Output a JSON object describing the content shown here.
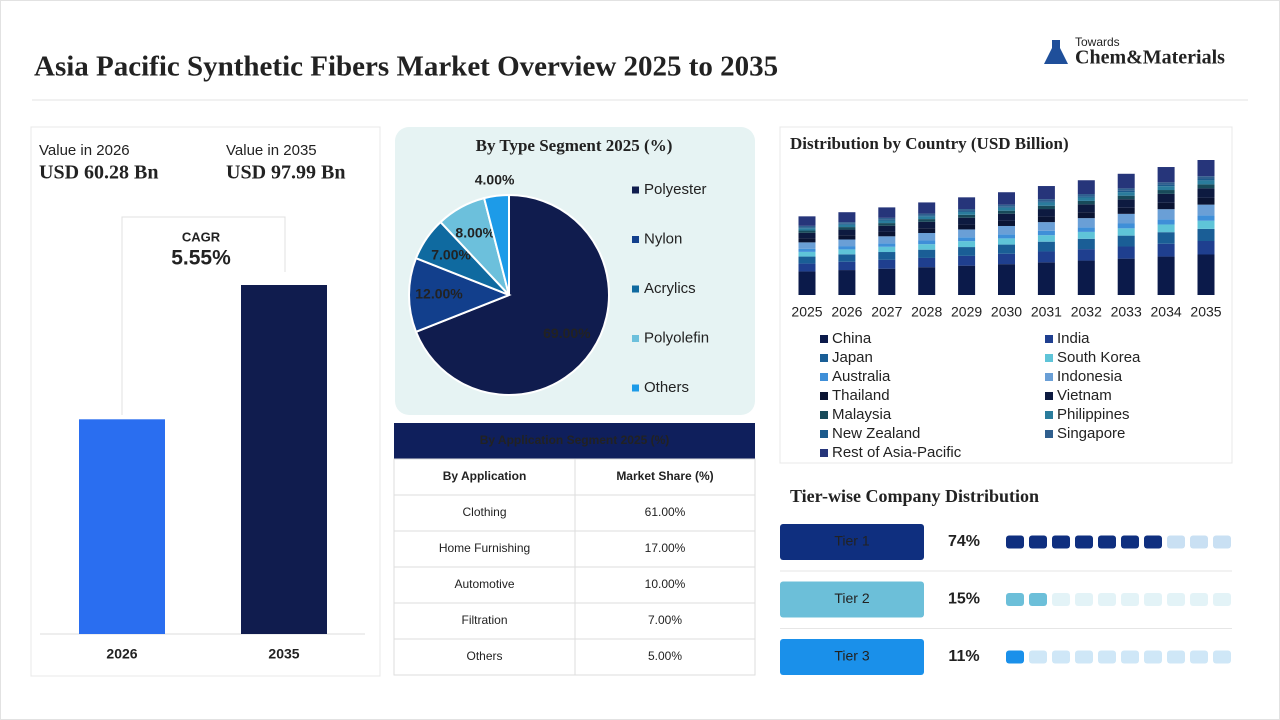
{
  "title": "Asia Pacific Synthetic Fibers Market Overview 2025 to 2035",
  "logo": {
    "top": "Towards",
    "main": "Chem&Materials"
  },
  "chart_data": [
    {
      "type": "bar",
      "categories": [
        "2026",
        "2035"
      ],
      "captions": [
        "Value in 2026",
        "Value in 2035"
      ],
      "values": [
        60.28,
        97.99
      ],
      "value_labels": [
        "USD 60.28 Bn",
        "USD 97.99 Bn"
      ],
      "colors": [
        "#2a6ef0",
        "#101c4e"
      ],
      "cagr": {
        "label": "CAGR",
        "value": "5.55%"
      }
    },
    {
      "type": "pie",
      "title": "By Type Segment 2025 (%)",
      "categories": [
        "Polyester",
        "Nylon",
        "Acrylics",
        "Polyolefin",
        "Others"
      ],
      "values": [
        69,
        12,
        7,
        8,
        4
      ],
      "value_labels": [
        "69.00%",
        "12.00%",
        "7.00%",
        "8.00%",
        "4.00%"
      ],
      "colors": [
        "#101c4e",
        "#123f8c",
        "#0f6aa0",
        "#6cc0dc",
        "#1d9be8"
      ]
    },
    {
      "type": "stacked_bar",
      "title": "Distribution by Country (USD Billion)",
      "categories": [
        "2025",
        "2026",
        "2027",
        "2028",
        "2029",
        "2030",
        "2031",
        "2032",
        "2033",
        "2034",
        "2035"
      ],
      "series": [
        {
          "name": "China",
          "color": "#0b1a4a",
          "values": [
            17.1,
            18.1,
            19.1,
            20.2,
            21.3,
            22.4,
            23.7,
            25.0,
            26.4,
            27.9,
            29.4
          ]
        },
        {
          "name": "India",
          "color": "#1f3f8f",
          "values": [
            5.7,
            6.0,
            6.4,
            6.7,
            7.1,
            7.5,
            7.9,
            8.3,
            8.8,
            9.3,
            9.8
          ]
        },
        {
          "name": "Japan",
          "color": "#1a5e96",
          "values": [
            5.1,
            5.4,
            5.7,
            6.0,
            6.4,
            6.7,
            7.1,
            7.5,
            7.9,
            8.4,
            8.8
          ]
        },
        {
          "name": "South Korea",
          "color": "#5fc4d8",
          "values": [
            3.4,
            3.6,
            3.8,
            4.0,
            4.3,
            4.5,
            4.7,
            5.0,
            5.3,
            5.6,
            5.9
          ]
        },
        {
          "name": "Australia",
          "color": "#3f8fd8",
          "values": [
            2.3,
            2.4,
            2.5,
            2.7,
            2.8,
            3.0,
            3.2,
            3.3,
            3.5,
            3.7,
            3.9
          ]
        },
        {
          "name": "Indonesia",
          "color": "#6a9fd6",
          "values": [
            4.6,
            4.8,
            5.1,
            5.4,
            5.7,
            6.0,
            6.3,
            6.7,
            7.0,
            7.4,
            7.8
          ]
        },
        {
          "name": "Thailand",
          "color": "#0a1433",
          "values": [
            2.9,
            3.0,
            3.2,
            3.4,
            3.5,
            3.7,
            4.0,
            4.2,
            4.4,
            4.6,
            4.9
          ]
        },
        {
          "name": "Vietnam",
          "color": "#0d1a40",
          "values": [
            4.0,
            4.2,
            4.5,
            4.7,
            5.0,
            5.2,
            5.5,
            5.8,
            6.2,
            6.5,
            6.9
          ]
        },
        {
          "name": "Malaysia",
          "color": "#184a5a",
          "values": [
            1.7,
            1.8,
            1.9,
            2.0,
            2.1,
            2.2,
            2.4,
            2.5,
            2.6,
            2.8,
            2.9
          ]
        },
        {
          "name": "Philippines",
          "color": "#2a7c9c",
          "values": [
            1.7,
            1.8,
            1.9,
            2.0,
            2.1,
            2.2,
            2.4,
            2.5,
            2.6,
            2.8,
            2.9
          ]
        },
        {
          "name": "New Zealand",
          "color": "#1b5a8c",
          "values": [
            0.6,
            0.6,
            0.6,
            0.7,
            0.7,
            0.7,
            0.8,
            0.8,
            0.9,
            0.9,
            1.0
          ]
        },
        {
          "name": "Singapore",
          "color": "#2f5f8e",
          "values": [
            1.1,
            1.2,
            1.3,
            1.3,
            1.4,
            1.5,
            1.6,
            1.7,
            1.8,
            1.9,
            2.0
          ]
        },
        {
          "name": "Rest of Asia-Pacific",
          "color": "#26357a",
          "values": [
            6.9,
            7.2,
            7.6,
            8.1,
            8.5,
            9.0,
            9.5,
            10.0,
            10.6,
            11.1,
            11.8
          ]
        }
      ]
    },
    {
      "type": "tiers",
      "title": "Tier-wise Company Distribution",
      "categories": [
        "Tier 1",
        "Tier 2",
        "Tier 3"
      ],
      "values": [
        74,
        15,
        11
      ],
      "value_labels": [
        "74%",
        "15%",
        "11%"
      ],
      "colors": [
        "#0f2f7f",
        "#6cbfd9",
        "#1a90ea"
      ],
      "empty_colors": [
        "#c9e0f3",
        "#e3f3f7",
        "#cfe7f7"
      ]
    }
  ],
  "table": {
    "title": "By Application Segment 2025 (%)",
    "header": [
      "By Application",
      "Market Share (%)"
    ],
    "rows": [
      [
        "Clothing",
        "61.00%"
      ],
      [
        "Home Furnishing",
        "17.00%"
      ],
      [
        "Automotive",
        "10.00%"
      ],
      [
        "Filtration",
        "7.00%"
      ],
      [
        "Others",
        "5.00%"
      ]
    ]
  }
}
